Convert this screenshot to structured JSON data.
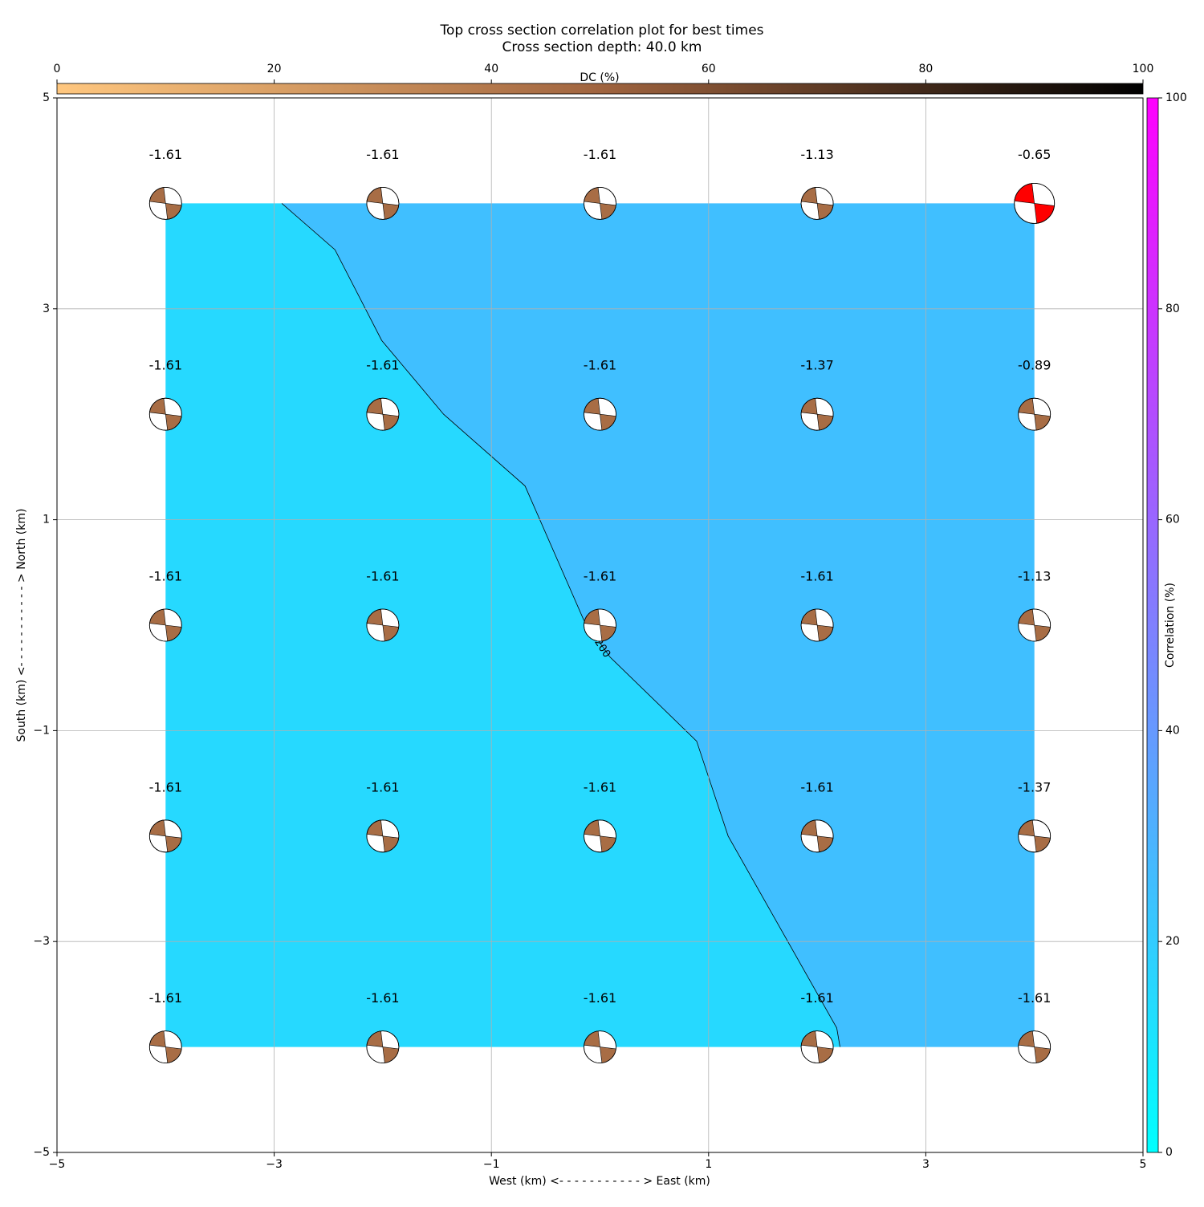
{
  "chart_data": {
    "type": "beachball-contour",
    "title": "Top cross section correlation plot for best times",
    "subtitle": "Cross section depth: 40.0 km",
    "xlabel": "West (km) <- - - - - - - - - - - > East (km)",
    "ylabel": "South (km) <- - - - - - - - - - - > North (km)",
    "xlim": [
      -5,
      5
    ],
    "ylim": [
      -5,
      5
    ],
    "xticks": [
      {
        "value": -5,
        "label": "−5"
      },
      {
        "value": -3,
        "label": "−3"
      },
      {
        "value": -1,
        "label": "−1"
      },
      1,
      3,
      5
    ],
    "yticks": [
      {
        "value": -5,
        "label": "−5"
      },
      {
        "value": -3,
        "label": "−3"
      },
      {
        "value": -1,
        "label": "−1"
      },
      1,
      3,
      5
    ],
    "grid": true,
    "x": [
      -4,
      -2,
      0,
      2,
      4,
      -4,
      -2,
      0,
      2,
      4,
      -4,
      -2,
      0,
      2,
      4,
      -4,
      -2,
      0,
      2,
      4,
      -4,
      -2,
      0,
      2,
      4
    ],
    "y": [
      4,
      4,
      4,
      4,
      4,
      2,
      2,
      2,
      2,
      2,
      0,
      0,
      0,
      0,
      0,
      -2,
      -2,
      -2,
      -2,
      -2,
      -4,
      -4,
      -4,
      -4,
      -4
    ],
    "values": [
      -1.61,
      -1.61,
      -1.61,
      -1.13,
      -0.65,
      -1.61,
      -1.61,
      -1.61,
      -1.37,
      -0.89,
      -1.61,
      -1.61,
      -1.61,
      -1.61,
      -1.13,
      -1.61,
      -1.61,
      -1.61,
      -1.61,
      -1.37,
      -1.61,
      -1.61,
      -1.61,
      -1.61,
      -1.61
    ],
    "ball_color": "#a86d45",
    "highlight_color": "#ff0000",
    "contour": {
      "label": "200",
      "colors": [
        "#26d9ff",
        "#40bfff"
      ],
      "x": [
        -2.93,
        -2.44,
        -2.01,
        -1.44,
        -0.69,
        -0.15,
        0.09,
        0.89,
        1.18,
        2.18,
        2.21
      ],
      "y": [
        4.0,
        3.56,
        2.7,
        2.0,
        1.32,
        0.05,
        -0.3,
        -1.1,
        -2.0,
        -3.82,
        -4.0
      ]
    },
    "dc_colorbar": {
      "label": "DC (%)",
      "lim": [
        0,
        100
      ],
      "ticks": [
        0,
        20,
        40,
        60,
        80,
        100
      ],
      "colors": [
        "#ffc77f",
        "#a0643f",
        "#000000"
      ]
    },
    "corr_colorbar": {
      "label": "Correlation (%)",
      "lim": [
        0,
        100
      ],
      "ticks": [
        0,
        20,
        40,
        60,
        80,
        100
      ],
      "colors": [
        "#00ffff",
        "#ff00ff"
      ]
    }
  }
}
